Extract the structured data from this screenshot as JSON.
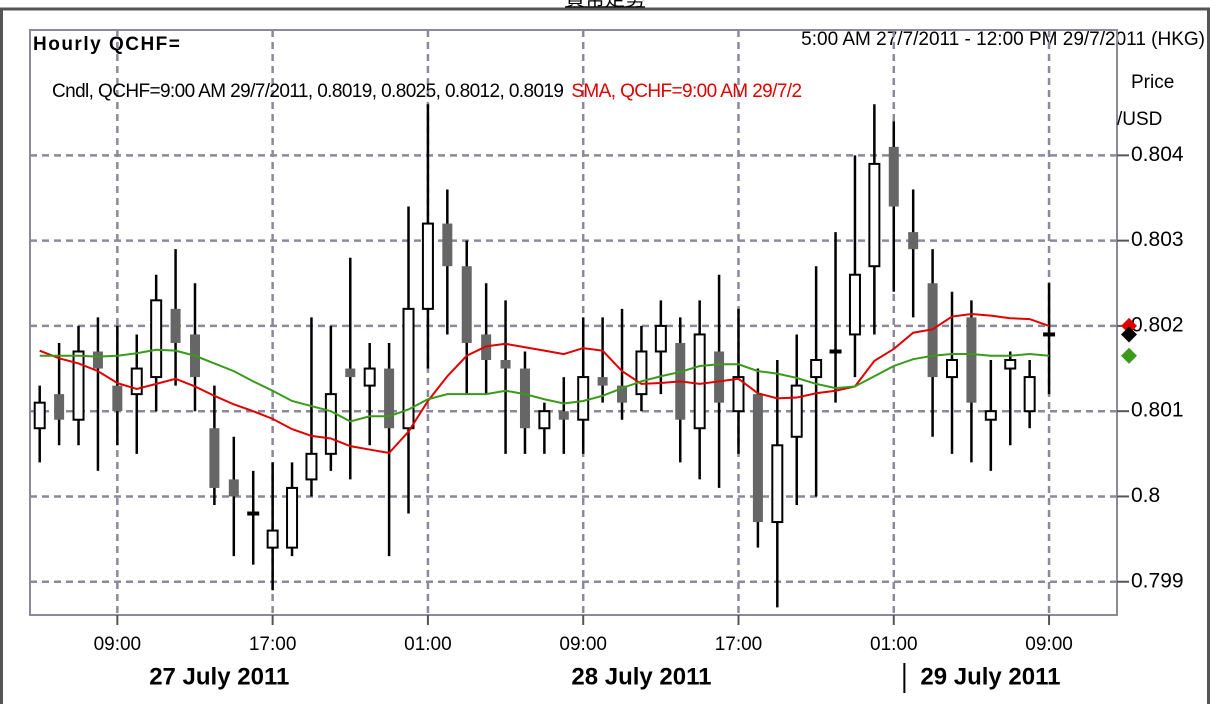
{
  "heading": "貨幣走勢",
  "chart_data": {
    "type": "candlestick",
    "title": "Hourly QCHF=",
    "subtitle": "5:00 AM 27/7/2011 - 12:00 PM 29/7/2011 (HKG)",
    "legend": [
      "Cndl, QCHF=9:00 AM 29/7/2011, 0.8019, 0.8025, 0.8012, 0.8019",
      "SMA, QCHF=9:00 AM 29/7/2"
    ],
    "ylabel": [
      "Price",
      "/USD"
    ],
    "x": [
      "2011-07-27T05:00",
      "2011-07-27T06:00",
      "2011-07-27T07:00",
      "2011-07-27T08:00",
      "2011-07-27T09:00",
      "2011-07-27T10:00",
      "2011-07-27T11:00",
      "2011-07-27T12:00",
      "2011-07-27T13:00",
      "2011-07-27T14:00",
      "2011-07-27T15:00",
      "2011-07-27T16:00",
      "2011-07-27T17:00",
      "2011-07-27T18:00",
      "2011-07-27T19:00",
      "2011-07-27T20:00",
      "2011-07-27T21:00",
      "2011-07-27T22:00",
      "2011-07-27T23:00",
      "2011-07-28T00:00",
      "2011-07-28T01:00",
      "2011-07-28T02:00",
      "2011-07-28T03:00",
      "2011-07-28T04:00",
      "2011-07-28T05:00",
      "2011-07-28T06:00",
      "2011-07-28T07:00",
      "2011-07-28T08:00",
      "2011-07-28T09:00",
      "2011-07-28T10:00",
      "2011-07-28T11:00",
      "2011-07-28T12:00",
      "2011-07-28T13:00",
      "2011-07-28T14:00",
      "2011-07-28T15:00",
      "2011-07-28T16:00",
      "2011-07-28T17:00",
      "2011-07-28T18:00",
      "2011-07-28T19:00",
      "2011-07-28T20:00",
      "2011-07-28T21:00",
      "2011-07-28T22:00",
      "2011-07-28T23:00",
      "2011-07-29T00:00",
      "2011-07-29T01:00",
      "2011-07-29T02:00",
      "2011-07-29T03:00",
      "2011-07-29T04:00",
      "2011-07-29T05:00",
      "2011-07-29T06:00",
      "2011-07-29T07:00",
      "2011-07-29T08:00",
      "2011-07-29T09:00"
    ],
    "series": [
      {
        "name": "Cndl",
        "up_color": "#ffffff",
        "down_color": "#666666",
        "open": [
          0.8008,
          0.8012,
          0.8009,
          0.8017,
          0.8013,
          0.8012,
          0.8014,
          0.8022,
          0.8019,
          0.8008,
          0.8002,
          0.7998,
          0.7994,
          0.7994,
          0.8002,
          0.8005,
          0.8015,
          0.8013,
          0.8015,
          0.8008,
          0.8022,
          0.8032,
          0.8027,
          0.8019,
          0.8016,
          0.8015,
          0.8008,
          0.801,
          0.8009,
          0.8014,
          0.8013,
          0.8012,
          0.8017,
          0.8018,
          0.8008,
          0.8017,
          0.801,
          0.8012,
          0.7997,
          0.8007,
          0.8014,
          0.8017,
          0.8019,
          0.8027,
          0.8041,
          0.8031,
          0.8025,
          0.8014,
          0.8021,
          0.8009,
          0.8015,
          0.801,
          0.8019
        ],
        "high": [
          0.8013,
          0.8018,
          0.802,
          0.8021,
          0.802,
          0.8019,
          0.8026,
          0.8029,
          0.8025,
          0.8013,
          0.8007,
          0.8003,
          0.8004,
          0.8004,
          0.8021,
          0.802,
          0.8028,
          0.8018,
          0.8018,
          0.8034,
          0.8046,
          0.8036,
          0.803,
          0.8025,
          0.8023,
          0.8017,
          0.8011,
          0.8014,
          0.8021,
          0.8021,
          0.8022,
          0.802,
          0.8023,
          0.8021,
          0.8023,
          0.8026,
          0.8022,
          0.8015,
          0.8016,
          0.8019,
          0.8027,
          0.8031,
          0.804,
          0.8046,
          0.8044,
          0.8036,
          0.8029,
          0.8024,
          0.8023,
          0.8016,
          0.8017,
          0.8016,
          0.8025
        ],
        "low": [
          0.8004,
          0.8006,
          0.8006,
          0.8003,
          0.8006,
          0.8005,
          0.801,
          0.8013,
          0.801,
          0.7999,
          0.7993,
          0.7992,
          0.7989,
          0.7993,
          0.8,
          0.8003,
          0.8002,
          0.8006,
          0.7993,
          0.7998,
          0.8015,
          0.8019,
          0.8012,
          0.8012,
          0.8005,
          0.8005,
          0.8005,
          0.8005,
          0.8005,
          0.8011,
          0.8009,
          0.801,
          0.8012,
          0.8004,
          0.8002,
          0.8001,
          0.8005,
          0.7994,
          0.7987,
          0.7999,
          0.8,
          0.8011,
          0.8014,
          0.8019,
          0.8024,
          0.8021,
          0.8007,
          0.8005,
          0.8004,
          0.8003,
          0.8006,
          0.8008,
          0.8012
        ],
        "close": [
          0.8011,
          0.8009,
          0.8017,
          0.8015,
          0.801,
          0.8015,
          0.8023,
          0.8018,
          0.8014,
          0.8001,
          0.8,
          0.7998,
          0.7996,
          0.8001,
          0.8005,
          0.8012,
          0.8014,
          0.8015,
          0.8008,
          0.8022,
          0.8032,
          0.8027,
          0.8018,
          0.8016,
          0.8015,
          0.8008,
          0.801,
          0.8009,
          0.8014,
          0.8013,
          0.8011,
          0.8017,
          0.802,
          0.8009,
          0.8019,
          0.8011,
          0.8014,
          0.7997,
          0.8006,
          0.8013,
          0.8016,
          0.8017,
          0.8026,
          0.8039,
          0.8034,
          0.8029,
          0.8014,
          0.8016,
          0.8011,
          0.801,
          0.8016,
          0.8014,
          0.8019
        ],
        "marker_color": "#000000"
      },
      {
        "name": "SMA",
        "color": "#e00000",
        "values": [
          0.80171,
          0.80162,
          0.80156,
          0.80147,
          0.80133,
          0.80126,
          0.80132,
          0.80138,
          0.80129,
          0.80118,
          0.80108,
          0.801,
          0.80091,
          0.80079,
          0.80071,
          0.80068,
          0.80059,
          0.80055,
          0.80051,
          0.80076,
          0.80112,
          0.80141,
          0.80165,
          0.80176,
          0.80179,
          0.80175,
          0.80171,
          0.80167,
          0.80174,
          0.80171,
          0.80147,
          0.80132,
          0.80133,
          0.80135,
          0.80132,
          0.80135,
          0.80138,
          0.80121,
          0.80115,
          0.80116,
          0.80121,
          0.80124,
          0.80129,
          0.80159,
          0.80173,
          0.80192,
          0.80196,
          0.80211,
          0.80214,
          0.80212,
          0.80209,
          0.80208,
          0.802
        ]
      },
      {
        "color": "#3a9a1a",
        "values": [
          0.80165,
          0.80165,
          0.80165,
          0.80164,
          0.80165,
          0.80168,
          0.80172,
          0.80171,
          0.80165,
          0.80156,
          0.80147,
          0.80135,
          0.80124,
          0.80112,
          0.80106,
          0.801,
          0.80088,
          0.80094,
          0.80094,
          0.80102,
          0.80114,
          0.8012,
          0.8012,
          0.8012,
          0.80124,
          0.8012,
          0.80114,
          0.80109,
          0.80112,
          0.80118,
          0.80127,
          0.80135,
          0.80141,
          0.80146,
          0.80153,
          0.80155,
          0.80155,
          0.80147,
          0.80144,
          0.80139,
          0.80132,
          0.80127,
          0.80129,
          0.80141,
          0.80153,
          0.80161,
          0.80165,
          0.80167,
          0.80167,
          0.80165,
          0.80165,
          0.80167,
          0.80165
        ]
      }
    ],
    "xlim": [
      "2011-07-27T04:30",
      "2011-07-29T12:30"
    ],
    "xticks": [
      {
        "value": "2011-07-27T09:00",
        "label": "09:00"
      },
      {
        "value": "2011-07-27T17:00",
        "label": "17:00"
      },
      {
        "value": "2011-07-28T01:00",
        "label": "01:00"
      },
      {
        "value": "2011-07-28T09:00",
        "label": "09:00"
      },
      {
        "value": "2011-07-28T17:00",
        "label": "17:00"
      },
      {
        "value": "2011-07-29T01:00",
        "label": "01:00"
      },
      {
        "value": "2011-07-29T09:00",
        "label": "09:00"
      }
    ],
    "day_labels": [
      {
        "value": "2011-07-27T00:00",
        "label": "27 July 2011"
      },
      {
        "value": "2011-07-28T00:00",
        "label": "28 July 2011"
      },
      {
        "value": "2011-07-29T00:00",
        "label": "29 July 2011"
      }
    ],
    "ylim": [
      0.79861,
      0.80547
    ],
    "yticks": [
      0.804,
      0.803,
      0.802,
      0.801,
      0.8,
      0.799
    ],
    "grid": true
  }
}
